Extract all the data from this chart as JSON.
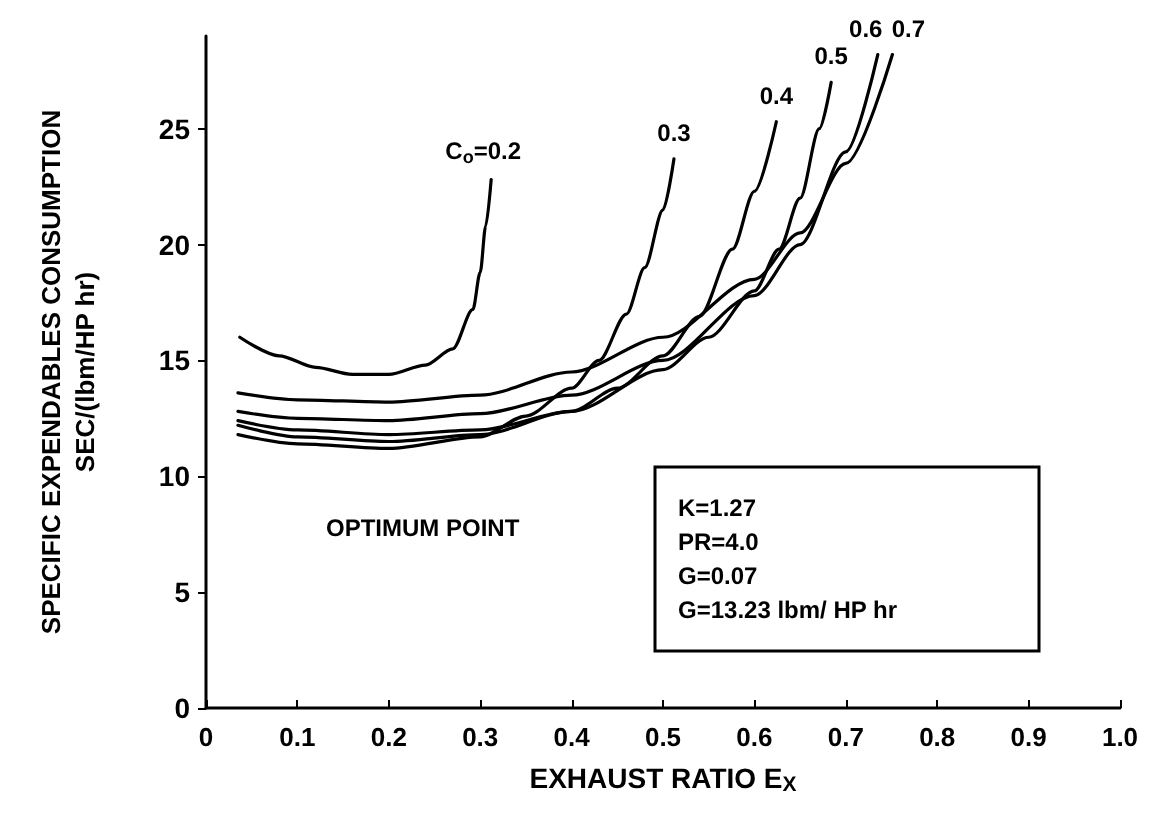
{
  "chart_data": {
    "type": "line",
    "xlabel": "EXHAUST RATIO E$_{X}$",
    "ylabel": "SPECIFIC EXPENDABLES CONSUMPTION\nSEC/(lbm/HP hr)",
    "xlim": [
      0,
      1.0
    ],
    "xticks": [
      0,
      0.1,
      0.2,
      0.3,
      0.4,
      0.5,
      0.6,
      0.7,
      0.8,
      0.9,
      {
        "value": 1.0,
        "label": "1.0"
      }
    ],
    "ylim": [
      0,
      29
    ],
    "yticks": [
      0,
      5,
      10,
      15,
      20,
      25
    ],
    "grid": false,
    "legend": false,
    "marker": "none",
    "line_style": "solid",
    "series": [
      {
        "name": "C$_{o}$=0.2",
        "color": "#000000",
        "x": [
          0.037,
          0.08,
          0.12,
          0.16,
          0.2,
          0.24,
          0.27,
          0.292,
          0.3,
          0.306,
          0.312
        ],
        "values": [
          16,
          15.2,
          14.7,
          14.4,
          14.4,
          14.8,
          15.5,
          17.2,
          18.8,
          20.8,
          22.8
        ]
      },
      {
        "name": "0.3",
        "color": "#000000",
        "x": [
          0.035,
          0.1,
          0.2,
          0.3,
          0.35,
          0.4,
          0.43,
          0.46,
          0.48,
          0.5,
          0.512
        ],
        "values": [
          11.8,
          11.4,
          11.2,
          11.7,
          12.6,
          13.8,
          15,
          17,
          19,
          21.5,
          23.7
        ]
      },
      {
        "name": "0.4",
        "color": "#000000",
        "x": [
          0.035,
          0.1,
          0.2,
          0.3,
          0.4,
          0.45,
          0.5,
          0.54,
          0.576,
          0.6,
          0.624
        ],
        "values": [
          12.2,
          11.7,
          11.5,
          11.8,
          12.8,
          13.8,
          15.2,
          16.9,
          19.8,
          22.3,
          25.3
        ]
      },
      {
        "name": "0.5",
        "color": "#000000",
        "x": [
          0.035,
          0.1,
          0.2,
          0.3,
          0.4,
          0.5,
          0.55,
          0.6,
          0.627,
          0.65,
          0.671,
          0.684
        ],
        "values": [
          12.4,
          12.0,
          11.8,
          12.0,
          12.8,
          14.6,
          16,
          18,
          19.8,
          22,
          25,
          27
        ]
      },
      {
        "name": "0.6",
        "color": "#000000",
        "x": [
          0.035,
          0.1,
          0.2,
          0.3,
          0.4,
          0.5,
          0.6,
          0.65,
          0.7,
          0.735
        ],
        "values": [
          12.8,
          12.5,
          12.4,
          12.7,
          13.5,
          15,
          17.8,
          20,
          24,
          28.2
        ]
      },
      {
        "name": "0.7",
        "color": "#000000",
        "x": [
          0.035,
          0.1,
          0.2,
          0.3,
          0.4,
          0.5,
          0.6,
          0.65,
          0.7,
          0.751
        ],
        "values": [
          13.6,
          13.3,
          13.2,
          13.5,
          14.5,
          16,
          18.5,
          20.5,
          23.5,
          28.2
        ]
      }
    ],
    "annotations": [
      "OPTIMUM POINT",
      "K=1.27",
      "PR=4.0",
      "G=0.07",
      "G=13.23 lbm/ HP hr"
    ]
  }
}
